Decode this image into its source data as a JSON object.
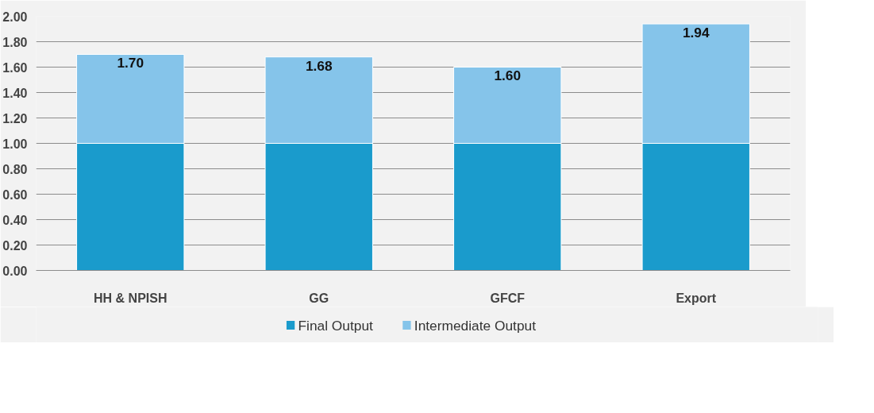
{
  "chart_data": {
    "type": "bar",
    "stacked": true,
    "categories": [
      "HH & NPISH",
      "GG",
      "GFCF",
      "Export"
    ],
    "series": [
      {
        "name": "Final Output",
        "color": "#1a9bcc",
        "values": [
          1.0,
          1.0,
          1.0,
          1.0
        ]
      },
      {
        "name": "Intermediate Output",
        "color": "#85c4ea",
        "values": [
          0.7,
          0.68,
          0.6,
          0.94
        ]
      }
    ],
    "totals": [
      "1.70",
      "1.68",
      "1.60",
      "1.94"
    ],
    "ylim": [
      0,
      2.0
    ],
    "yticks": [
      {
        "value": 0,
        "label": "0.00"
      },
      {
        "value": 0.2,
        "label": "0.20"
      },
      {
        "value": 0.4,
        "label": "0.40"
      },
      {
        "value": 0.6,
        "label": "0.60"
      },
      {
        "value": 0.8,
        "label": "0.80"
      },
      {
        "value": 1.0,
        "label": "1.00"
      },
      {
        "value": 1.2,
        "label": "1.20"
      },
      {
        "value": 1.4,
        "label": "1.40"
      },
      {
        "value": 1.6,
        "label": "1.60"
      },
      {
        "value": 1.8,
        "label": "1.80"
      },
      {
        "value": 2.0,
        "label": "2.00"
      }
    ],
    "grid": "y",
    "legend": "bottom"
  }
}
